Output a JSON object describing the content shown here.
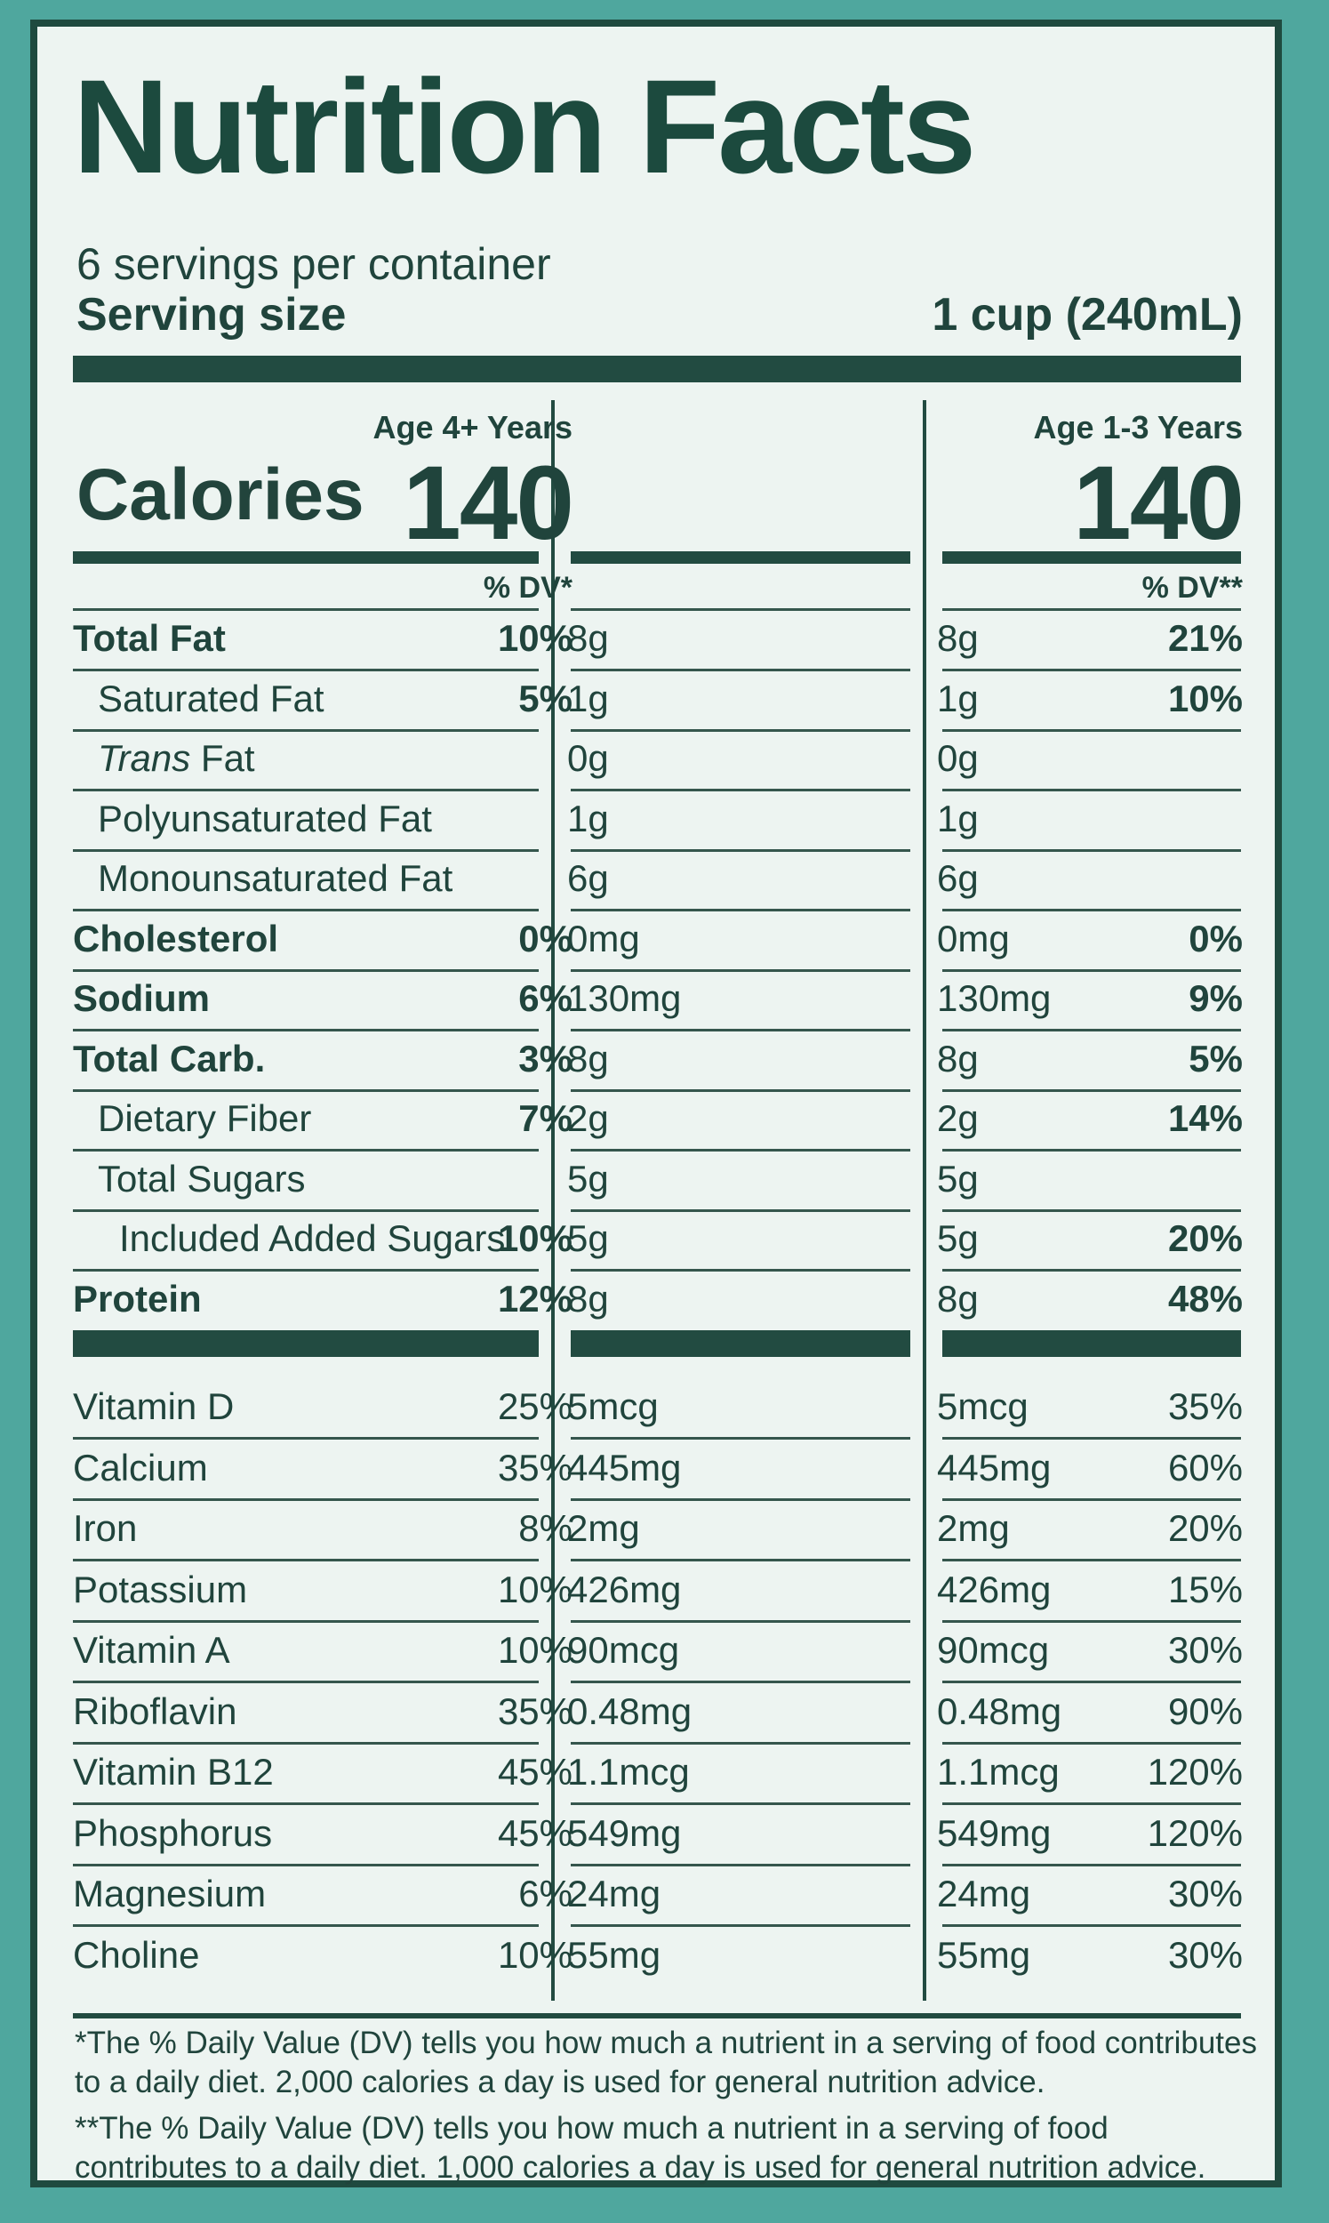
{
  "title": "Nutrition Facts",
  "servings_per_container": "6 servings per container",
  "serving_size_label": "Serving size",
  "serving_size_value": "1 cup (240mL)",
  "calories_label": "Calories",
  "columns": [
    {
      "header": "Age 4+ Years",
      "calories": "140",
      "dv_header": "% DV*"
    },
    {
      "header": "Age 1-3 Years",
      "calories": "140",
      "dv_header": "% DV**"
    }
  ],
  "nutrients": [
    {
      "name": "Total Fat",
      "bold": true,
      "indent": 0,
      "v1": "8g",
      "p1": "10%",
      "v2": "8g",
      "p2": "21%"
    },
    {
      "name": "Saturated Fat",
      "bold": false,
      "indent": 1,
      "v1": "1g",
      "p1": "5%",
      "v2": "1g",
      "p2": "10%"
    },
    {
      "name": "Trans Fat",
      "bold": false,
      "indent": 1,
      "italic_prefix": "Trans",
      "suffix": " Fat",
      "v1": "0g",
      "p1": "",
      "v2": "0g",
      "p2": ""
    },
    {
      "name": "Polyunsaturated Fat",
      "bold": false,
      "indent": 1,
      "v1": "1g",
      "p1": "",
      "v2": "1g",
      "p2": ""
    },
    {
      "name": "Monounsaturated Fat",
      "bold": false,
      "indent": 1,
      "v1": "6g",
      "p1": "",
      "v2": "6g",
      "p2": ""
    },
    {
      "name": "Cholesterol",
      "bold": true,
      "indent": 0,
      "v1": "0mg",
      "p1": "0%",
      "v2": "0mg",
      "p2": "0%"
    },
    {
      "name": "Sodium",
      "bold": true,
      "indent": 0,
      "v1": "130mg",
      "p1": "6%",
      "v2": "130mg",
      "p2": "9%"
    },
    {
      "name": "Total Carb.",
      "bold": true,
      "indent": 0,
      "v1": "8g",
      "p1": "3%",
      "v2": "8g",
      "p2": "5%"
    },
    {
      "name": "Dietary Fiber",
      "bold": false,
      "indent": 1,
      "v1": "2g",
      "p1": "7%",
      "v2": "2g",
      "p2": "14%"
    },
    {
      "name": "Total Sugars",
      "bold": false,
      "indent": 1,
      "v1": "5g",
      "p1": "",
      "v2": "5g",
      "p2": ""
    },
    {
      "name": "Included Added Sugars",
      "bold": false,
      "indent": 2,
      "v1": "5g",
      "p1": "10%",
      "v2": "5g",
      "p2": "20%"
    },
    {
      "name": "Protein",
      "bold": true,
      "indent": 0,
      "v1": "8g",
      "p1": "12%",
      "v2": "8g",
      "p2": "48%"
    }
  ],
  "vitamins": [
    {
      "name": "Vitamin D",
      "v1": "5mcg",
      "p1": "25%",
      "v2": "5mcg",
      "p2": "35%"
    },
    {
      "name": "Calcium",
      "v1": "445mg",
      "p1": "35%",
      "v2": "445mg",
      "p2": "60%"
    },
    {
      "name": "Iron",
      "v1": "2mg",
      "p1": "8%",
      "v2": "2mg",
      "p2": "20%"
    },
    {
      "name": "Potassium",
      "v1": "426mg",
      "p1": "10%",
      "v2": "426mg",
      "p2": "15%"
    },
    {
      "name": "Vitamin A",
      "v1": "90mcg",
      "p1": "10%",
      "v2": "90mcg",
      "p2": "30%"
    },
    {
      "name": "Riboflavin",
      "v1": "0.48mg",
      "p1": "35%",
      "v2": "0.48mg",
      "p2": "90%"
    },
    {
      "name": "Vitamin B12",
      "v1": "1.1mcg",
      "p1": "45%",
      "v2": "1.1mcg",
      "p2": "120%"
    },
    {
      "name": "Phosphorus",
      "v1": "549mg",
      "p1": "45%",
      "v2": "549mg",
      "p2": "120%"
    },
    {
      "name": "Magnesium",
      "v1": "24mg",
      "p1": "6%",
      "v2": "24mg",
      "p2": "30%"
    },
    {
      "name": "Choline",
      "v1": "55mg",
      "p1": "10%",
      "v2": "55mg",
      "p2": "30%"
    }
  ],
  "footnotes": [
    "*The % Daily Value (DV) tells you how much a nutrient in a serving of food contributes to a daily diet. 2,000 calories a day is used for general nutrition advice.",
    "**The % Daily Value (DV) tells you how much a nutrient in a serving of food contributes to a daily diet. 1,000 calories a day is used for general nutrition advice."
  ],
  "colors": {
    "background": "#4fa79e",
    "panel": "#edf4f1",
    "ink": "#20443c"
  }
}
